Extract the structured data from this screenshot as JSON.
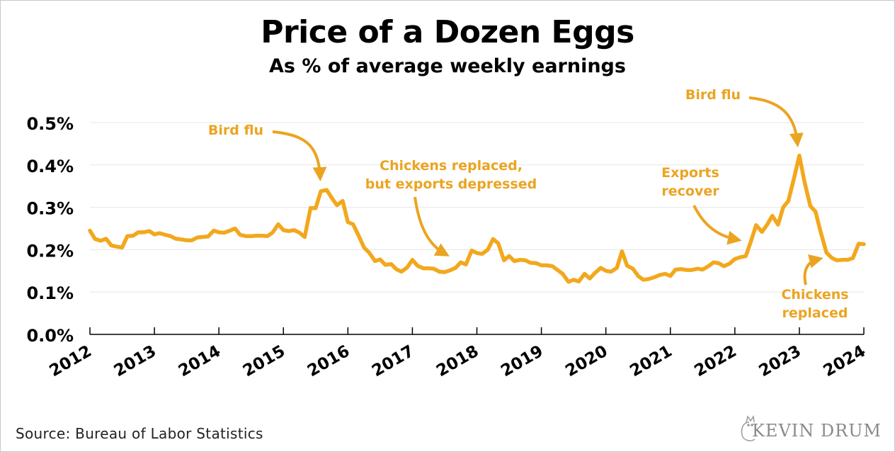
{
  "header": {
    "title": "Price of a Dozen Eggs",
    "subtitle": "As % of average weekly earnings"
  },
  "footer": {
    "source": "Source: Bureau of Labor Statistics",
    "logo_text": "KEVIN DRUM"
  },
  "colors": {
    "line": "#f2a81d",
    "annotation": "#eba421",
    "grid": "#e6e6e6",
    "axis": "#000000"
  },
  "chart_data": {
    "type": "line",
    "title": "Price of a Dozen Eggs",
    "subtitle": "As % of average weekly earnings",
    "xlabel": "",
    "ylabel": "",
    "xlim": [
      2012,
      2024
    ],
    "ylim": [
      0,
      0.5
    ],
    "y_ticks": [
      "0.0%",
      "0.1%",
      "0.2%",
      "0.3%",
      "0.4%",
      "0.5%"
    ],
    "x_ticks": [
      "2012",
      "2013",
      "2014",
      "2015",
      "2016",
      "2017",
      "2018",
      "2019",
      "2020",
      "2021",
      "2022",
      "2023",
      "2024"
    ],
    "grid": "horizontal",
    "series": [
      {
        "x": [
          2012.0,
          2012.08,
          2012.17,
          2012.25,
          2012.33,
          2012.42,
          2012.5,
          2012.58,
          2012.67,
          2012.75,
          2012.83,
          2012.92,
          2013.0,
          2013.08,
          2013.17,
          2013.25,
          2013.33,
          2013.42,
          2013.5,
          2013.58,
          2013.67,
          2013.75,
          2013.83,
          2013.92,
          2014.0,
          2014.08,
          2014.17,
          2014.25,
          2014.33,
          2014.42,
          2014.5,
          2014.58,
          2014.67,
          2014.75,
          2014.83,
          2014.92,
          2015.0,
          2015.08,
          2015.17,
          2015.25,
          2015.33,
          2015.42,
          2015.5,
          2015.58,
          2015.67,
          2015.75,
          2015.83,
          2015.92,
          2016.0,
          2016.08,
          2016.17,
          2016.25,
          2016.33,
          2016.42,
          2016.5,
          2016.58,
          2016.67,
          2016.75,
          2016.83,
          2016.92,
          2017.0,
          2017.08,
          2017.17,
          2017.25,
          2017.33,
          2017.42,
          2017.5,
          2017.58,
          2017.67,
          2017.75,
          2017.83,
          2017.92,
          2018.0,
          2018.08,
          2018.17,
          2018.25,
          2018.33,
          2018.42,
          2018.5,
          2018.58,
          2018.67,
          2018.75,
          2018.83,
          2018.92,
          2019.0,
          2019.08,
          2019.17,
          2019.25,
          2019.33,
          2019.42,
          2019.5,
          2019.58,
          2019.67,
          2019.75,
          2019.83,
          2019.92,
          2020.0,
          2020.08,
          2020.17,
          2020.25,
          2020.33,
          2020.42,
          2020.5,
          2020.58,
          2020.67,
          2020.75,
          2020.83,
          2020.92,
          2021.0,
          2021.08,
          2021.17,
          2021.25,
          2021.33,
          2021.42,
          2021.5,
          2021.58,
          2021.67,
          2021.75,
          2021.83,
          2021.92,
          2022.0,
          2022.08,
          2022.17,
          2022.25,
          2022.33,
          2022.42,
          2022.5,
          2022.58,
          2022.67,
          2022.75,
          2022.83,
          2022.92,
          2023.0,
          2023.08,
          2023.17,
          2023.25,
          2023.33,
          2023.42,
          2023.5,
          2023.58,
          2023.67,
          2023.75,
          2023.83,
          2023.92,
          2024.0
        ],
        "y": [
          0.245,
          0.225,
          0.221,
          0.226,
          0.21,
          0.207,
          0.205,
          0.232,
          0.233,
          0.241,
          0.241,
          0.244,
          0.236,
          0.239,
          0.235,
          0.232,
          0.226,
          0.224,
          0.222,
          0.222,
          0.229,
          0.23,
          0.231,
          0.245,
          0.241,
          0.24,
          0.245,
          0.25,
          0.235,
          0.232,
          0.232,
          0.233,
          0.233,
          0.232,
          0.24,
          0.26,
          0.246,
          0.244,
          0.246,
          0.24,
          0.23,
          0.298,
          0.298,
          0.338,
          0.341,
          0.322,
          0.305,
          0.315,
          0.265,
          0.26,
          0.232,
          0.205,
          0.193,
          0.173,
          0.177,
          0.164,
          0.166,
          0.154,
          0.148,
          0.158,
          0.176,
          0.162,
          0.156,
          0.156,
          0.155,
          0.148,
          0.147,
          0.151,
          0.157,
          0.17,
          0.165,
          0.198,
          0.192,
          0.19,
          0.2,
          0.225,
          0.215,
          0.175,
          0.185,
          0.173,
          0.176,
          0.175,
          0.169,
          0.168,
          0.163,
          0.163,
          0.161,
          0.152,
          0.143,
          0.124,
          0.129,
          0.125,
          0.143,
          0.132,
          0.145,
          0.157,
          0.15,
          0.148,
          0.157,
          0.196,
          0.162,
          0.155,
          0.138,
          0.129,
          0.131,
          0.135,
          0.14,
          0.143,
          0.138,
          0.153,
          0.154,
          0.152,
          0.152,
          0.155,
          0.153,
          0.16,
          0.17,
          0.168,
          0.161,
          0.167,
          0.178,
          0.182,
          0.185,
          0.22,
          0.258,
          0.242,
          0.259,
          0.28,
          0.259,
          0.3,
          0.315,
          0.37,
          0.422,
          0.36,
          0.303,
          0.29,
          0.242,
          0.193,
          0.181,
          0.175,
          0.176,
          0.176,
          0.18,
          0.214,
          0.213
        ]
      }
    ],
    "annotations": [
      {
        "text": [
          "Bird flu"
        ],
        "x": 2015.6,
        "y": 0.345
      },
      {
        "text": [
          "Chickens replaced,",
          "but exports depressed"
        ],
        "x": 2017.55,
        "y": 0.15
      },
      {
        "text": [
          "Exports",
          "recover"
        ],
        "x": 2022.0,
        "y": 0.19
      },
      {
        "text": [
          "Bird flu"
        ],
        "x": 2023.0,
        "y": 0.43
      },
      {
        "text": [
          "Chickens",
          "replaced"
        ],
        "x": 2023.35,
        "y": 0.185
      }
    ]
  }
}
